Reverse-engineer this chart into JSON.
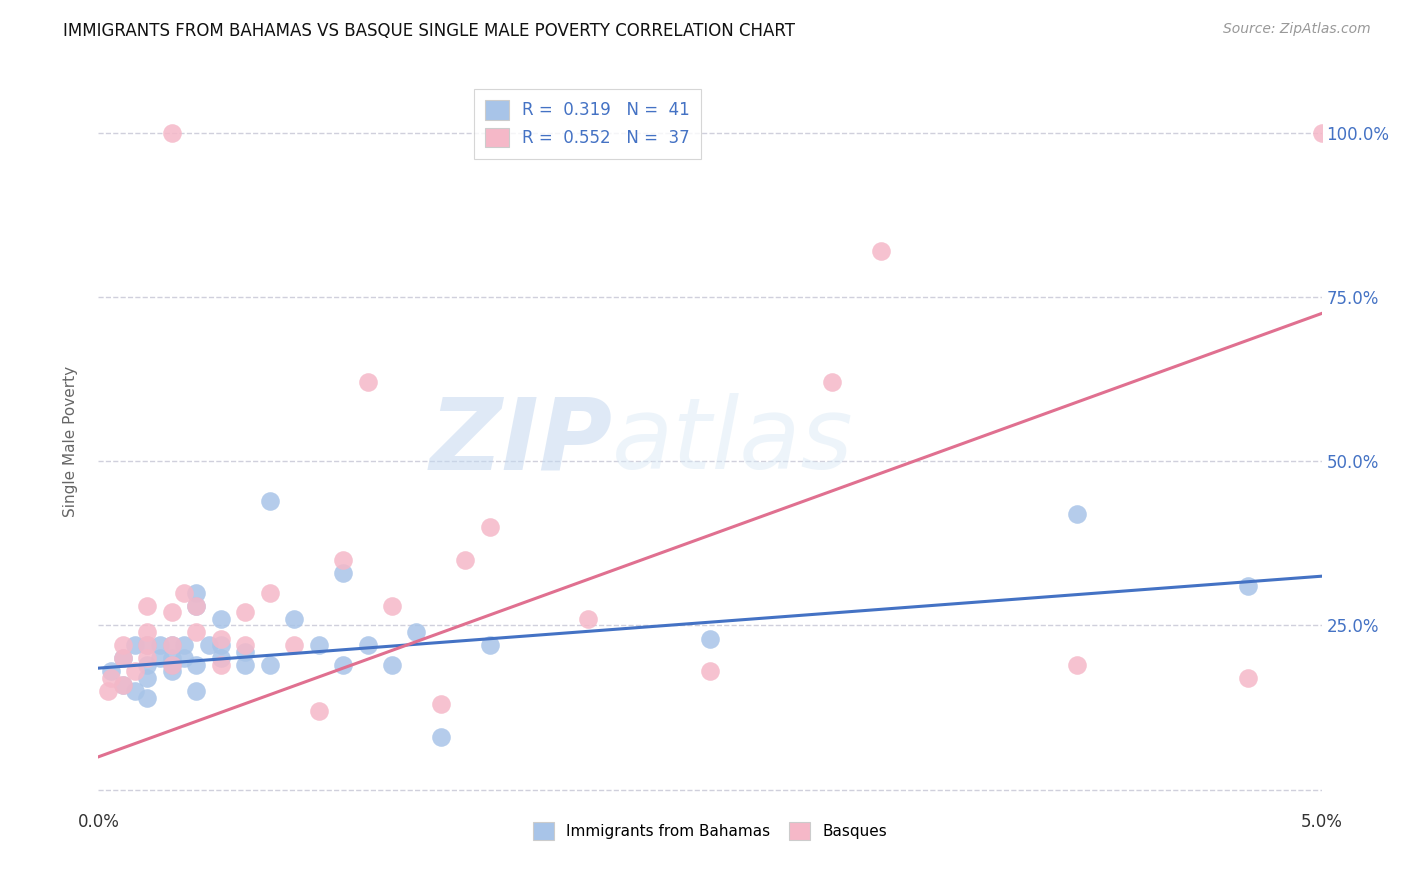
{
  "title": "IMMIGRANTS FROM BAHAMAS VS BASQUE SINGLE MALE POVERTY CORRELATION CHART",
  "source": "Source: ZipAtlas.com",
  "ylabel": "Single Male Poverty",
  "xlim": [
    0.0,
    0.05
  ],
  "ylim": [
    -0.02,
    1.08
  ],
  "legend_blue_r": "0.319",
  "legend_blue_n": "41",
  "legend_pink_r": "0.552",
  "legend_pink_n": "37",
  "blue_color": "#a8c4e8",
  "pink_color": "#f5b8c8",
  "blue_line_color": "#4472c4",
  "pink_line_color": "#e07090",
  "background_color": "#ffffff",
  "grid_color": "#d0d0dc",
  "right_axis_color": "#4472c4",
  "watermark_zip": "ZIP",
  "watermark_atlas": "atlas",
  "blue_x": [
    0.0005,
    0.001,
    0.001,
    0.0015,
    0.0015,
    0.002,
    0.002,
    0.002,
    0.002,
    0.0025,
    0.0025,
    0.003,
    0.003,
    0.003,
    0.003,
    0.0035,
    0.0035,
    0.004,
    0.004,
    0.004,
    0.004,
    0.0045,
    0.005,
    0.005,
    0.005,
    0.006,
    0.006,
    0.007,
    0.007,
    0.008,
    0.009,
    0.01,
    0.01,
    0.011,
    0.012,
    0.013,
    0.014,
    0.016,
    0.025,
    0.04,
    0.047
  ],
  "blue_y": [
    0.18,
    0.2,
    0.16,
    0.15,
    0.22,
    0.17,
    0.19,
    0.22,
    0.14,
    0.2,
    0.22,
    0.19,
    0.18,
    0.22,
    0.2,
    0.2,
    0.22,
    0.19,
    0.28,
    0.3,
    0.15,
    0.22,
    0.2,
    0.22,
    0.26,
    0.19,
    0.21,
    0.44,
    0.19,
    0.26,
    0.22,
    0.33,
    0.19,
    0.22,
    0.19,
    0.24,
    0.08,
    0.22,
    0.23,
    0.42,
    0.31
  ],
  "pink_x": [
    0.0004,
    0.0005,
    0.001,
    0.001,
    0.001,
    0.0015,
    0.002,
    0.002,
    0.002,
    0.002,
    0.003,
    0.003,
    0.003,
    0.003,
    0.0035,
    0.004,
    0.004,
    0.005,
    0.005,
    0.006,
    0.006,
    0.007,
    0.008,
    0.009,
    0.01,
    0.011,
    0.012,
    0.014,
    0.015,
    0.016,
    0.02,
    0.025,
    0.03,
    0.032,
    0.04,
    0.047,
    0.05
  ],
  "pink_y": [
    0.15,
    0.17,
    0.16,
    0.2,
    0.22,
    0.18,
    0.2,
    0.24,
    0.22,
    0.28,
    0.19,
    0.22,
    0.27,
    1.0,
    0.3,
    0.24,
    0.28,
    0.19,
    0.23,
    0.22,
    0.27,
    0.3,
    0.22,
    0.12,
    0.35,
    0.62,
    0.28,
    0.13,
    0.35,
    0.4,
    0.26,
    0.18,
    0.62,
    0.82,
    0.19,
    0.17,
    1.0
  ],
  "blue_intercept": 0.185,
  "blue_slope": 2.8,
  "pink_intercept": 0.05,
  "pink_slope": 13.5
}
